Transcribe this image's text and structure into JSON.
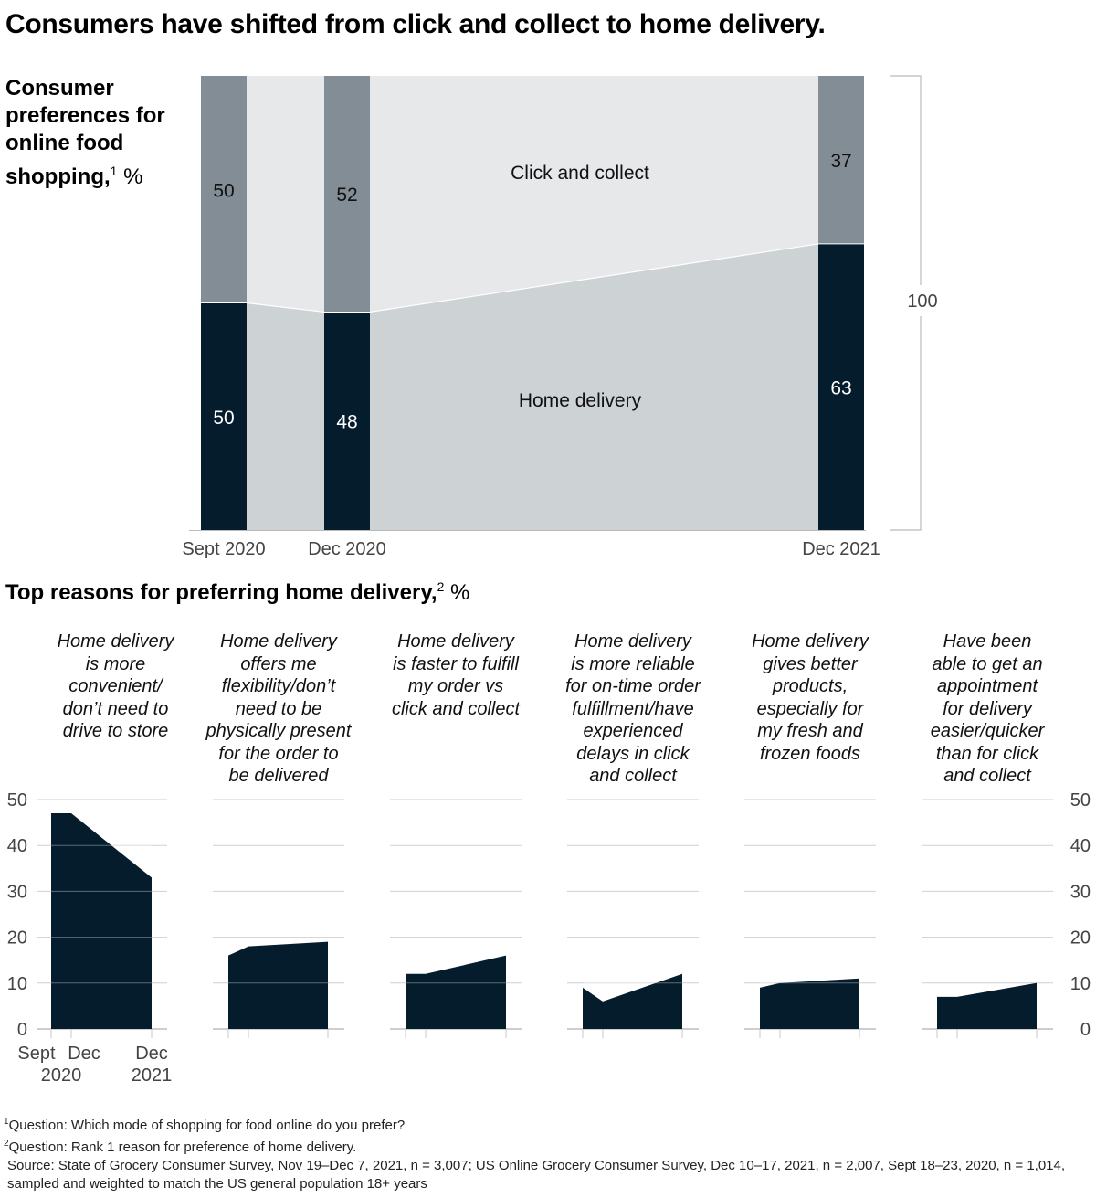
{
  "title": "Consumers have shifted from click and collect to home delivery.",
  "chart_data": [
    {
      "type": "bar",
      "stacked": true,
      "title": "Consumer preferences for online food shopping",
      "title_sup": "1",
      "unit": "%",
      "categories": [
        "Sept 2020",
        "Dec 2020",
        "Dec 2021"
      ],
      "series": [
        {
          "name": "Home delivery",
          "values": [
            50,
            48,
            63
          ],
          "color": "#051c2c"
        },
        {
          "name": "Click and collect",
          "values": [
            50,
            52,
            37
          ],
          "color": "#828d96"
        }
      ],
      "band_colors": {
        "home_delivery": "#cdd2d5",
        "click_and_collect": "#e6e8ea"
      },
      "total_label": "100",
      "ylim": [
        0,
        100
      ]
    },
    {
      "type": "area",
      "title": "Top reasons for preferring home delivery",
      "title_sup": "2",
      "unit": "%",
      "x": [
        "Sept 2020",
        "Dec 2020",
        "Dec 2021"
      ],
      "x_tick_labels": [
        {
          "top": "Sept",
          "bottom": "2020"
        },
        {
          "top": "Dec",
          "bottom": ""
        },
        {
          "top": "Dec",
          "bottom": "2021"
        }
      ],
      "x_tick_bottom_shared": "2020",
      "y_ticks": [
        0,
        10,
        20,
        30,
        40,
        50
      ],
      "ylim": [
        0,
        50
      ],
      "color": "#051c2c",
      "series": [
        {
          "name": "Home delivery is more convenient/ don't need to drive to store",
          "lines": [
            "Home delivery",
            "is more",
            "convenient/",
            "don’t need to",
            "drive to store"
          ],
          "values": [
            47,
            47,
            33
          ]
        },
        {
          "name": "Home delivery offers me flexibility/don't need to be physically present for the order to be delivered",
          "lines": [
            "Home delivery",
            "offers me",
            "flexibility/don’t",
            "need to be",
            "physically present",
            "for the order to",
            "be delivered"
          ],
          "values": [
            16,
            18,
            19
          ]
        },
        {
          "name": "Home delivery is faster to fulfill my order vs click and collect",
          "lines": [
            "Home delivery",
            "is faster to fulfill",
            "my order vs",
            "click and collect"
          ],
          "values": [
            12,
            12,
            16
          ]
        },
        {
          "name": "Home delivery is more reliable for on-time order fulfillment/have experienced delays in click and collect",
          "lines": [
            "Home delivery",
            "is more reliable",
            "for on-time order",
            "fulfillment/have",
            "experienced",
            "delays in click",
            "and collect"
          ],
          "values": [
            9,
            6,
            12
          ]
        },
        {
          "name": "Home delivery gives better products, especially for my fresh and frozen foods",
          "lines": [
            "Home delivery",
            "gives better",
            "products,",
            "especially for",
            "my fresh and",
            "frozen foods"
          ],
          "values": [
            9,
            10,
            11
          ]
        },
        {
          "name": "Have been able to get an appointment for delivery easier/quicker than for click and collect",
          "lines": [
            "Have been",
            "able to get an",
            "appointment",
            "for delivery",
            "easier/quicker",
            "than for click",
            "and collect"
          ],
          "values": [
            7,
            7,
            10
          ]
        }
      ]
    }
  ],
  "footnotes": [
    {
      "sup": "1",
      "text": "Question: Which mode of shopping for food online do you prefer?"
    },
    {
      "sup": "2",
      "text": "Question: Rank 1 reason for preference of home delivery."
    },
    {
      "sup": "",
      "text": "Source: State of Grocery Consumer Survey, Nov 19–Dec 7, 2021, n = 3,007; US Online Grocery Consumer Survey, Dec 10–17, 2021, n = 2,007, Sept 18–23, 2020, n = 1,014, sampled and weighted to match the US general population 18+ years"
    }
  ]
}
